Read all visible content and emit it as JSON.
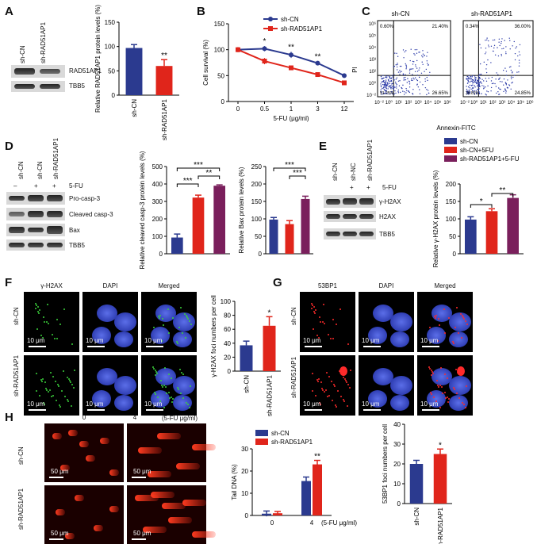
{
  "panels": {
    "A": {
      "letter": "A",
      "lanes": [
        "sh-CN",
        "sh-RAD51AP1"
      ],
      "rows": [
        "RAD51AP1",
        "TBB5"
      ]
    },
    "B": {
      "letter": "B"
    },
    "C": {
      "letter": "C",
      "titles": [
        "sh-CN",
        "sh-RAD51AP1"
      ],
      "xlabel": "Annexin-FITC",
      "ylabel": "PI",
      "quadrants": [
        [
          "0.60%",
          "21.40%",
          "51.25%",
          "26.65%"
        ],
        [
          "0.34%",
          "36.00%",
          "38.81%",
          "24.85%"
        ]
      ],
      "xticks": [
        "10⁻²",
        "10⁰",
        "10¹",
        "10²",
        "10³",
        "10⁴",
        "10⁵",
        "10⁶"
      ],
      "yticks": [
        "10⁶",
        "10⁵",
        "10⁴",
        "10³",
        "10²",
        "10⁰",
        "10⁻²"
      ]
    },
    "D": {
      "letter": "D",
      "lanes": [
        "sh-CN",
        "sh-CN",
        "sh-RAD51AP1"
      ],
      "treat": [
        "–",
        "+",
        "+"
      ],
      "treat_label": "5-FU",
      "rows": [
        "Pro-casp-3",
        "Cleaved casp-3",
        "Bax",
        "TBB5"
      ]
    },
    "E": {
      "letter": "E",
      "lanes": [
        "sh-CN",
        "sh-NC",
        "sh-RAD51AP1"
      ],
      "treat": [
        "",
        "+",
        "+"
      ],
      "treat_label": "5-FU",
      "rows": [
        "γ-H2AX",
        "H2AX",
        "TBB5"
      ],
      "legend": [
        "sh-CN",
        "sh-CN+5FU",
        "sh-RAD51AP1+5-FU"
      ]
    },
    "F": {
      "letter": "F",
      "cols": [
        "γ-H2AX",
        "DAPI",
        "Merged"
      ],
      "rows": [
        "sh-CN",
        "sh-RAD51AP1"
      ],
      "scale": "10 μm"
    },
    "G": {
      "letter": "G",
      "cols": [
        "53BP1",
        "DAPI",
        "Merged"
      ],
      "rows": [
        "sh-CN",
        "sh-RAD51AP1"
      ],
      "scale": "10 μm"
    },
    "H": {
      "letter": "H",
      "cols": [
        "0",
        "4"
      ],
      "cols_unit": "(5-FU μg/ml)",
      "rows": [
        "sh-CN",
        "sh-RAD51AP1"
      ],
      "scale": "50 μm"
    }
  },
  "colors": {
    "blue": "#2b3a8f",
    "red": "#e0251b",
    "purple": "#7a1f5c"
  },
  "chart_data": [
    {
      "id": "A",
      "type": "bar",
      "categories": [
        "sh-CN",
        "sh-RAD51AP1"
      ],
      "values": [
        97,
        60
      ],
      "errors": [
        7,
        13
      ],
      "ylabel": "Relative RAD51AP1 protein levels (%)",
      "ylim": [
        0,
        150
      ],
      "yticks": [
        0,
        50,
        100,
        150
      ],
      "sig": [
        "",
        "**"
      ],
      "colors": [
        "#2b3a8f",
        "#e0251b"
      ]
    },
    {
      "id": "B",
      "type": "line",
      "x": [
        "0",
        "0.5",
        "1",
        "3",
        "12"
      ],
      "xlabel": "5-FU (μg/ml)",
      "ylabel": "Cell survival (%)",
      "ylim": [
        0,
        150
      ],
      "yticks": [
        0,
        50,
        100,
        150
      ],
      "legend_position": "top-right",
      "series": [
        {
          "name": "sh-CN",
          "values": [
            100,
            102,
            90,
            74,
            50
          ],
          "errors": [
            4,
            5,
            6,
            3,
            3
          ],
          "color": "#2b3a8f"
        },
        {
          "name": "sh-RAD51AP1",
          "values": [
            100,
            78,
            65,
            52,
            36
          ],
          "errors": [
            5,
            6,
            3,
            2,
            2
          ],
          "color": "#e0251b"
        }
      ],
      "sig": [
        "",
        "*",
        "**",
        "**",
        ""
      ]
    },
    {
      "id": "D1",
      "type": "bar",
      "categories": [
        "",
        "",
        ""
      ],
      "values": [
        93,
        322,
        390
      ],
      "errors": [
        20,
        14,
        5
      ],
      "ylabel": "Relative cleaved casp-3 protein levels (%)",
      "ylim": [
        0,
        500
      ],
      "yticks": [
        0,
        100,
        200,
        300,
        400,
        500
      ],
      "brackets": [
        [
          "0",
          "1",
          "***"
        ],
        [
          "0",
          "2",
          "***"
        ],
        [
          "1",
          "2",
          "**"
        ]
      ],
      "colors": [
        "#2b3a8f",
        "#e0251b",
        "#7a1f5c"
      ]
    },
    {
      "id": "D2",
      "type": "bar",
      "categories": [
        "",
        "",
        ""
      ],
      "values": [
        98,
        85,
        157
      ],
      "errors": [
        6,
        10,
        8
      ],
      "ylabel": "Relative Bax protein levels (%)",
      "ylim": [
        0,
        250
      ],
      "yticks": [
        0,
        50,
        100,
        150,
        200,
        250
      ],
      "brackets": [
        [
          "0",
          "2",
          "***"
        ],
        [
          "1",
          "2",
          "***"
        ]
      ],
      "colors": [
        "#2b3a8f",
        "#e0251b",
        "#7a1f5c"
      ]
    },
    {
      "id": "E",
      "type": "bar",
      "categories": [
        "",
        "",
        ""
      ],
      "values": [
        98,
        122,
        160
      ],
      "errors": [
        8,
        7,
        9
      ],
      "ylabel": "Relative γ-H2AX protein levels (%)",
      "ylim": [
        0,
        200
      ],
      "yticks": [
        0,
        50,
        100,
        150,
        200
      ],
      "brackets": [
        [
          "0",
          "1",
          "*"
        ],
        [
          "1",
          "2",
          "**"
        ]
      ],
      "colors": [
        "#2b3a8f",
        "#e0251b",
        "#7a1f5c"
      ]
    },
    {
      "id": "F",
      "type": "bar",
      "categories": [
        "sh-CN",
        "sh-RAD51AP1"
      ],
      "values": [
        37,
        65
      ],
      "errors": [
        6,
        13
      ],
      "ylabel": "γ-H2AX foci numbers per cell",
      "ylim": [
        0,
        100
      ],
      "yticks": [
        0,
        20,
        40,
        60,
        80,
        100
      ],
      "sig": [
        "",
        "*"
      ],
      "colors": [
        "#2b3a8f",
        "#e0251b"
      ]
    },
    {
      "id": "H1",
      "type": "bar",
      "categories": [
        "0",
        "4"
      ],
      "xunit": "(5-FU μg/ml)",
      "ylabel": "Tail DNA (%)",
      "ylim": [
        0,
        30
      ],
      "yticks": [
        0,
        10,
        20,
        30
      ],
      "legend_position": "top-left",
      "series": [
        {
          "name": "sh-CN",
          "values": [
            0.8,
            15.5
          ],
          "errors": [
            1.2,
            1.8
          ],
          "color": "#2b3a8f"
        },
        {
          "name": "sh-RAD51AP1",
          "values": [
            1.0,
            23
          ],
          "errors": [
            0.8,
            1.8
          ],
          "color": "#e0251b"
        }
      ],
      "sig": [
        "",
        "**"
      ]
    },
    {
      "id": "H2",
      "type": "bar",
      "categories": [
        "sh-CN",
        "sh-RAD51AP1"
      ],
      "values": [
        20,
        25
      ],
      "errors": [
        1.8,
        2.5
      ],
      "ylabel": "53BP1 foci numbers per cell",
      "ylim": [
        0,
        40
      ],
      "yticks": [
        0,
        10,
        20,
        30,
        40
      ],
      "sig": [
        "",
        "*"
      ],
      "colors": [
        "#2b3a8f",
        "#e0251b"
      ]
    }
  ]
}
